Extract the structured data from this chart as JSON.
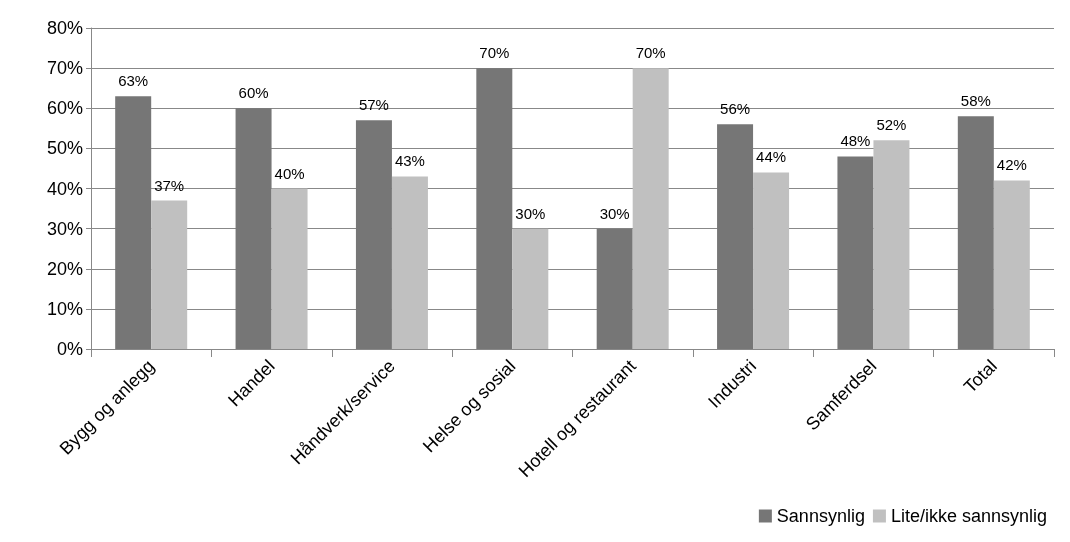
{
  "chart_data": {
    "type": "bar",
    "categories": [
      "Bygg og anlegg",
      "Handel",
      "Håndverk/service",
      "Helse og sosial",
      "Hotell og restaurant",
      "Industri",
      "Samferdsel",
      "Total"
    ],
    "series": [
      {
        "name": "Sannsynlig",
        "color": "#767676",
        "values": [
          63,
          60,
          57,
          70,
          30,
          56,
          48,
          58
        ],
        "value_labels": [
          "63%",
          "60%",
          "57%",
          "70%",
          "30%",
          "56%",
          "48%",
          "58%"
        ]
      },
      {
        "name": "Lite/ikke sannsynlig",
        "color": "#c0c0c0",
        "values": [
          37,
          40,
          43,
          30,
          70,
          44,
          52,
          42
        ],
        "value_labels": [
          "37%",
          "40%",
          "43%",
          "30%",
          "70%",
          "44%",
          "52%",
          "42%"
        ]
      }
    ],
    "ylim": [
      0,
      80
    ],
    "yticks": [
      {
        "value": 0,
        "label": "0%"
      },
      {
        "value": 10,
        "label": "10%"
      },
      {
        "value": 20,
        "label": "20%"
      },
      {
        "value": 30,
        "label": "30%"
      },
      {
        "value": 40,
        "label": "40%"
      },
      {
        "value": 50,
        "label": "50%"
      },
      {
        "value": 60,
        "label": "60%"
      },
      {
        "value": 70,
        "label": "70%"
      },
      {
        "value": 80,
        "label": "80%"
      }
    ],
    "grid": "y",
    "legend": "bottom right"
  }
}
